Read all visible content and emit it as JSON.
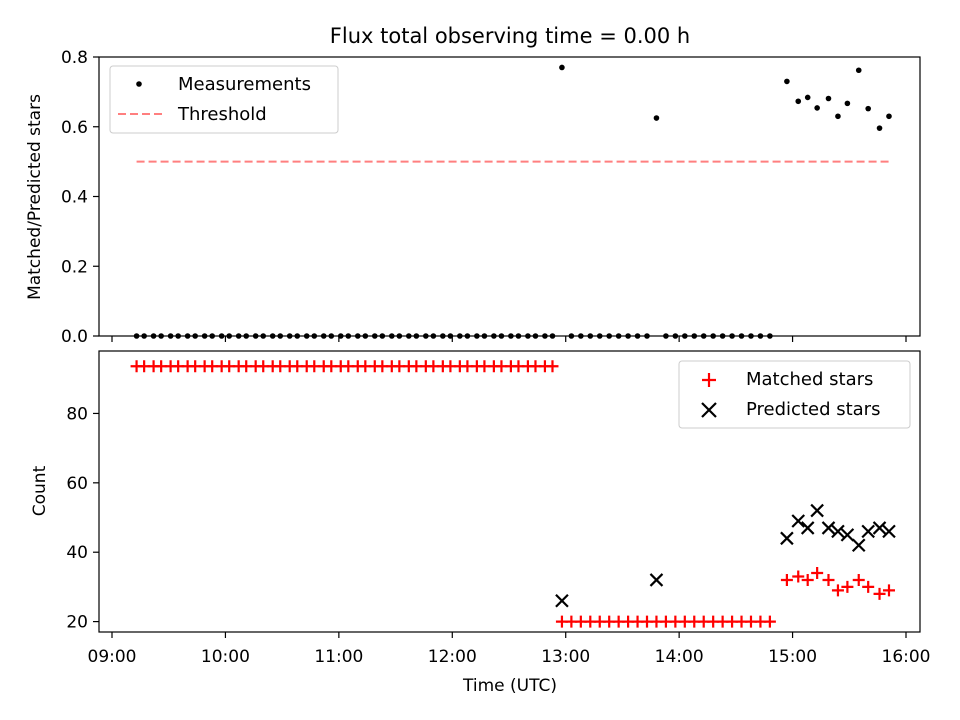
{
  "chart_data": [
    {
      "type": "scatter",
      "title": "Flux total observing time = 0.00 h",
      "ylabel": "Matched/Predicted stars",
      "xlabel": "",
      "xlim": [
        "09:00",
        "16:00"
      ],
      "ylim": [
        0,
        0.8
      ],
      "yticks": [
        "0.0",
        "0.2",
        "0.4",
        "0.6",
        "0.8"
      ],
      "legend_location": "upper-left",
      "series": [
        {
          "name": "Measurements",
          "marker": "dot",
          "color": "#000000",
          "points": [
            [
              "09:13",
              0.0
            ],
            [
              "09:17",
              0.0
            ],
            [
              "09:22",
              0.0
            ],
            [
              "09:26",
              0.0
            ],
            [
              "09:31",
              0.0
            ],
            [
              "09:35",
              0.0
            ],
            [
              "09:40",
              0.0
            ],
            [
              "09:44",
              0.0
            ],
            [
              "09:49",
              0.0
            ],
            [
              "09:53",
              0.0
            ],
            [
              "09:58",
              0.0
            ],
            [
              "10:02",
              0.0
            ],
            [
              "10:07",
              0.0
            ],
            [
              "10:11",
              0.0
            ],
            [
              "10:16",
              0.0
            ],
            [
              "10:20",
              0.0
            ],
            [
              "10:25",
              0.0
            ],
            [
              "10:29",
              0.0
            ],
            [
              "10:34",
              0.0
            ],
            [
              "10:38",
              0.0
            ],
            [
              "10:43",
              0.0
            ],
            [
              "10:47",
              0.0
            ],
            [
              "10:52",
              0.0
            ],
            [
              "10:56",
              0.0
            ],
            [
              "11:01",
              0.0
            ],
            [
              "11:05",
              0.0
            ],
            [
              "11:10",
              0.0
            ],
            [
              "11:14",
              0.0
            ],
            [
              "11:19",
              0.0
            ],
            [
              "11:23",
              0.0
            ],
            [
              "11:28",
              0.0
            ],
            [
              "11:32",
              0.0
            ],
            [
              "11:37",
              0.0
            ],
            [
              "11:41",
              0.0
            ],
            [
              "11:46",
              0.0
            ],
            [
              "11:50",
              0.0
            ],
            [
              "11:55",
              0.0
            ],
            [
              "11:59",
              0.0
            ],
            [
              "12:04",
              0.0
            ],
            [
              "12:08",
              0.0
            ],
            [
              "12:13",
              0.0
            ],
            [
              "12:17",
              0.0
            ],
            [
              "12:22",
              0.0
            ],
            [
              "12:26",
              0.0
            ],
            [
              "12:31",
              0.0
            ],
            [
              "12:35",
              0.0
            ],
            [
              "12:40",
              0.0
            ],
            [
              "12:44",
              0.0
            ],
            [
              "12:49",
              0.0
            ],
            [
              "12:53",
              0.0
            ],
            [
              "12:58",
              0.77
            ],
            [
              "13:03",
              0.0
            ],
            [
              "13:08",
              0.0
            ],
            [
              "13:13",
              0.0
            ],
            [
              "13:18",
              0.0
            ],
            [
              "13:23",
              0.0
            ],
            [
              "13:28",
              0.0
            ],
            [
              "13:33",
              0.0
            ],
            [
              "13:38",
              0.0
            ],
            [
              "13:43",
              0.0
            ],
            [
              "13:48",
              0.625
            ],
            [
              "13:53",
              0.0
            ],
            [
              "13:58",
              0.0
            ],
            [
              "14:03",
              0.0
            ],
            [
              "14:08",
              0.0
            ],
            [
              "14:13",
              0.0
            ],
            [
              "14:18",
              0.0
            ],
            [
              "14:23",
              0.0
            ],
            [
              "14:28",
              0.0
            ],
            [
              "14:33",
              0.0
            ],
            [
              "14:38",
              0.0
            ],
            [
              "14:43",
              0.0
            ],
            [
              "14:48",
              0.0
            ],
            [
              "14:57",
              0.73
            ],
            [
              "15:03",
              0.673
            ],
            [
              "15:08",
              0.684
            ],
            [
              "15:13",
              0.654
            ],
            [
              "15:19",
              0.681
            ],
            [
              "15:24",
              0.63
            ],
            [
              "15:29",
              0.667
            ],
            [
              "15:35",
              0.762
            ],
            [
              "15:40",
              0.652
            ],
            [
              "15:46",
              0.596
            ],
            [
              "15:51",
              0.63
            ]
          ]
        },
        {
          "name": "Threshold",
          "marker": "dashed-line",
          "color": "#ff7f7f",
          "points": [
            [
              "09:13",
              0.5
            ],
            [
              "15:51",
              0.5
            ]
          ]
        }
      ]
    },
    {
      "type": "scatter",
      "title": "",
      "ylabel": "Count",
      "xlabel": "Time (UTC)",
      "xlim": [
        "09:00",
        "16:00"
      ],
      "ylim": [
        17,
        98
      ],
      "yticks": [
        "20",
        "40",
        "60",
        "80"
      ],
      "xticks": [
        "09:00",
        "10:00",
        "11:00",
        "12:00",
        "13:00",
        "14:00",
        "15:00",
        "16:00"
      ],
      "legend_location": "upper-right",
      "series": [
        {
          "name": "Matched stars",
          "marker": "plus",
          "color": "#ff0000",
          "points": [
            [
              "09:13",
              93.6
            ],
            [
              "09:17",
              93.6
            ],
            [
              "09:22",
              93.6
            ],
            [
              "09:26",
              93.6
            ],
            [
              "09:31",
              93.6
            ],
            [
              "09:35",
              93.6
            ],
            [
              "09:40",
              93.6
            ],
            [
              "09:44",
              93.6
            ],
            [
              "09:49",
              93.6
            ],
            [
              "09:53",
              93.6
            ],
            [
              "09:58",
              93.6
            ],
            [
              "10:02",
              93.6
            ],
            [
              "10:07",
              93.6
            ],
            [
              "10:11",
              93.6
            ],
            [
              "10:16",
              93.6
            ],
            [
              "10:20",
              93.6
            ],
            [
              "10:25",
              93.6
            ],
            [
              "10:29",
              93.6
            ],
            [
              "10:34",
              93.6
            ],
            [
              "10:38",
              93.6
            ],
            [
              "10:43",
              93.6
            ],
            [
              "10:47",
              93.6
            ],
            [
              "10:52",
              93.6
            ],
            [
              "10:56",
              93.6
            ],
            [
              "11:01",
              93.6
            ],
            [
              "11:05",
              93.6
            ],
            [
              "11:10",
              93.6
            ],
            [
              "11:14",
              93.6
            ],
            [
              "11:19",
              93.6
            ],
            [
              "11:23",
              93.6
            ],
            [
              "11:28",
              93.6
            ],
            [
              "11:32",
              93.6
            ],
            [
              "11:37",
              93.6
            ],
            [
              "11:41",
              93.6
            ],
            [
              "11:46",
              93.6
            ],
            [
              "11:50",
              93.6
            ],
            [
              "11:55",
              93.6
            ],
            [
              "11:59",
              93.6
            ],
            [
              "12:04",
              93.6
            ],
            [
              "12:08",
              93.6
            ],
            [
              "12:13",
              93.6
            ],
            [
              "12:17",
              93.6
            ],
            [
              "12:22",
              93.6
            ],
            [
              "12:26",
              93.6
            ],
            [
              "12:31",
              93.6
            ],
            [
              "12:35",
              93.6
            ],
            [
              "12:40",
              93.6
            ],
            [
              "12:44",
              93.6
            ],
            [
              "12:49",
              93.6
            ],
            [
              "12:53",
              93.6
            ],
            [
              "12:58",
              20
            ],
            [
              "13:03",
              20
            ],
            [
              "13:08",
              20
            ],
            [
              "13:13",
              20
            ],
            [
              "13:18",
              20
            ],
            [
              "13:23",
              20
            ],
            [
              "13:28",
              20
            ],
            [
              "13:33",
              20
            ],
            [
              "13:38",
              20
            ],
            [
              "13:43",
              20
            ],
            [
              "13:48",
              20
            ],
            [
              "13:53",
              20
            ],
            [
              "13:58",
              20
            ],
            [
              "14:03",
              20
            ],
            [
              "14:08",
              20
            ],
            [
              "14:13",
              20
            ],
            [
              "14:18",
              20
            ],
            [
              "14:23",
              20
            ],
            [
              "14:28",
              20
            ],
            [
              "14:33",
              20
            ],
            [
              "14:38",
              20
            ],
            [
              "14:43",
              20
            ],
            [
              "14:48",
              20
            ],
            [
              "14:57",
              32
            ],
            [
              "15:03",
              33
            ],
            [
              "15:08",
              32
            ],
            [
              "15:13",
              34
            ],
            [
              "15:19",
              32
            ],
            [
              "15:24",
              29
            ],
            [
              "15:29",
              30
            ],
            [
              "15:35",
              32
            ],
            [
              "15:40",
              30
            ],
            [
              "15:46",
              28
            ],
            [
              "15:51",
              29
            ]
          ]
        },
        {
          "name": "Predicted stars",
          "marker": "x",
          "color": "#000000",
          "points": [
            [
              "12:58",
              26
            ],
            [
              "13:48",
              32
            ],
            [
              "14:57",
              44
            ],
            [
              "15:03",
              49
            ],
            [
              "15:08",
              47
            ],
            [
              "15:13",
              52
            ],
            [
              "15:19",
              47
            ],
            [
              "15:24",
              46
            ],
            [
              "15:29",
              45
            ],
            [
              "15:35",
              42
            ],
            [
              "15:40",
              46
            ],
            [
              "15:46",
              47
            ],
            [
              "15:51",
              46
            ]
          ]
        }
      ]
    }
  ]
}
